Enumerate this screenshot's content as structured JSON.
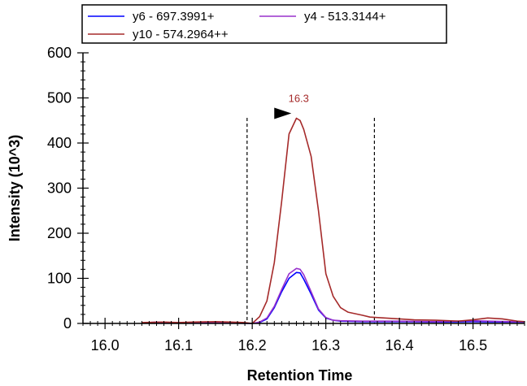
{
  "chart_data": {
    "type": "line",
    "title": "",
    "xlabel": "Retention Time",
    "ylabel": "Intensity (10^3)",
    "xlim": [
      15.97,
      16.57
    ],
    "ylim": [
      0,
      600
    ],
    "x_ticks": [
      "16.0",
      "16.1",
      "16.2",
      "16.3",
      "16.4",
      "16.5"
    ],
    "y_ticks": [
      "0",
      "100",
      "200",
      "300",
      "400",
      "500",
      "600"
    ],
    "legend_position": "top",
    "grid": false,
    "integration_bounds": [
      16.193,
      16.366
    ],
    "annotation": {
      "label": "16.3",
      "x": 16.262,
      "y": 455,
      "color": "#a52a2a"
    },
    "series": [
      {
        "name": "y6 - 697.3991+",
        "color": "#0000ff",
        "points": [
          [
            16.06,
            1
          ],
          [
            16.07,
            2
          ],
          [
            16.08,
            1
          ],
          [
            16.13,
            1
          ],
          [
            16.14,
            2
          ],
          [
            16.15,
            1
          ],
          [
            16.2,
            0
          ],
          [
            16.21,
            2
          ],
          [
            16.22,
            10
          ],
          [
            16.23,
            35
          ],
          [
            16.24,
            70
          ],
          [
            16.25,
            100
          ],
          [
            16.26,
            113
          ],
          [
            16.265,
            112
          ],
          [
            16.27,
            98
          ],
          [
            16.28,
            65
          ],
          [
            16.29,
            30
          ],
          [
            16.3,
            12
          ],
          [
            16.31,
            7
          ],
          [
            16.32,
            5
          ],
          [
            16.35,
            4
          ],
          [
            16.4,
            4
          ],
          [
            16.45,
            3
          ],
          [
            16.5,
            4
          ],
          [
            16.55,
            3
          ],
          [
            16.57,
            3
          ]
        ]
      },
      {
        "name": "y4 - 513.3144+",
        "color": "#9932cc",
        "points": [
          [
            16.06,
            2
          ],
          [
            16.07,
            3
          ],
          [
            16.08,
            2
          ],
          [
            16.13,
            2
          ],
          [
            16.14,
            3
          ],
          [
            16.15,
            2
          ],
          [
            16.2,
            0
          ],
          [
            16.21,
            3
          ],
          [
            16.22,
            12
          ],
          [
            16.23,
            38
          ],
          [
            16.24,
            75
          ],
          [
            16.25,
            110
          ],
          [
            16.26,
            122
          ],
          [
            16.265,
            120
          ],
          [
            16.27,
            108
          ],
          [
            16.28,
            70
          ],
          [
            16.29,
            32
          ],
          [
            16.3,
            13
          ],
          [
            16.31,
            7
          ],
          [
            16.32,
            6
          ],
          [
            16.35,
            5
          ],
          [
            16.4,
            5
          ],
          [
            16.45,
            4
          ],
          [
            16.5,
            6
          ],
          [
            16.55,
            4
          ],
          [
            16.57,
            4
          ]
        ]
      },
      {
        "name": "y10 - 574.2964++",
        "color": "#a52a2a",
        "points": [
          [
            16.05,
            2
          ],
          [
            16.08,
            3
          ],
          [
            16.1,
            2
          ],
          [
            16.12,
            3
          ],
          [
            16.15,
            4
          ],
          [
            16.17,
            3
          ],
          [
            16.19,
            2
          ],
          [
            16.2,
            0
          ],
          [
            16.21,
            15
          ],
          [
            16.22,
            50
          ],
          [
            16.23,
            135
          ],
          [
            16.24,
            270
          ],
          [
            16.25,
            420
          ],
          [
            16.26,
            455
          ],
          [
            16.265,
            450
          ],
          [
            16.27,
            430
          ],
          [
            16.28,
            370
          ],
          [
            16.29,
            250
          ],
          [
            16.3,
            110
          ],
          [
            16.31,
            60
          ],
          [
            16.32,
            35
          ],
          [
            16.33,
            25
          ],
          [
            16.35,
            18
          ],
          [
            16.36,
            14
          ],
          [
            16.4,
            10
          ],
          [
            16.42,
            8
          ],
          [
            16.45,
            7
          ],
          [
            16.48,
            5
          ],
          [
            16.5,
            8
          ],
          [
            16.52,
            12
          ],
          [
            16.54,
            10
          ],
          [
            16.56,
            5
          ],
          [
            16.57,
            4
          ]
        ]
      }
    ]
  }
}
